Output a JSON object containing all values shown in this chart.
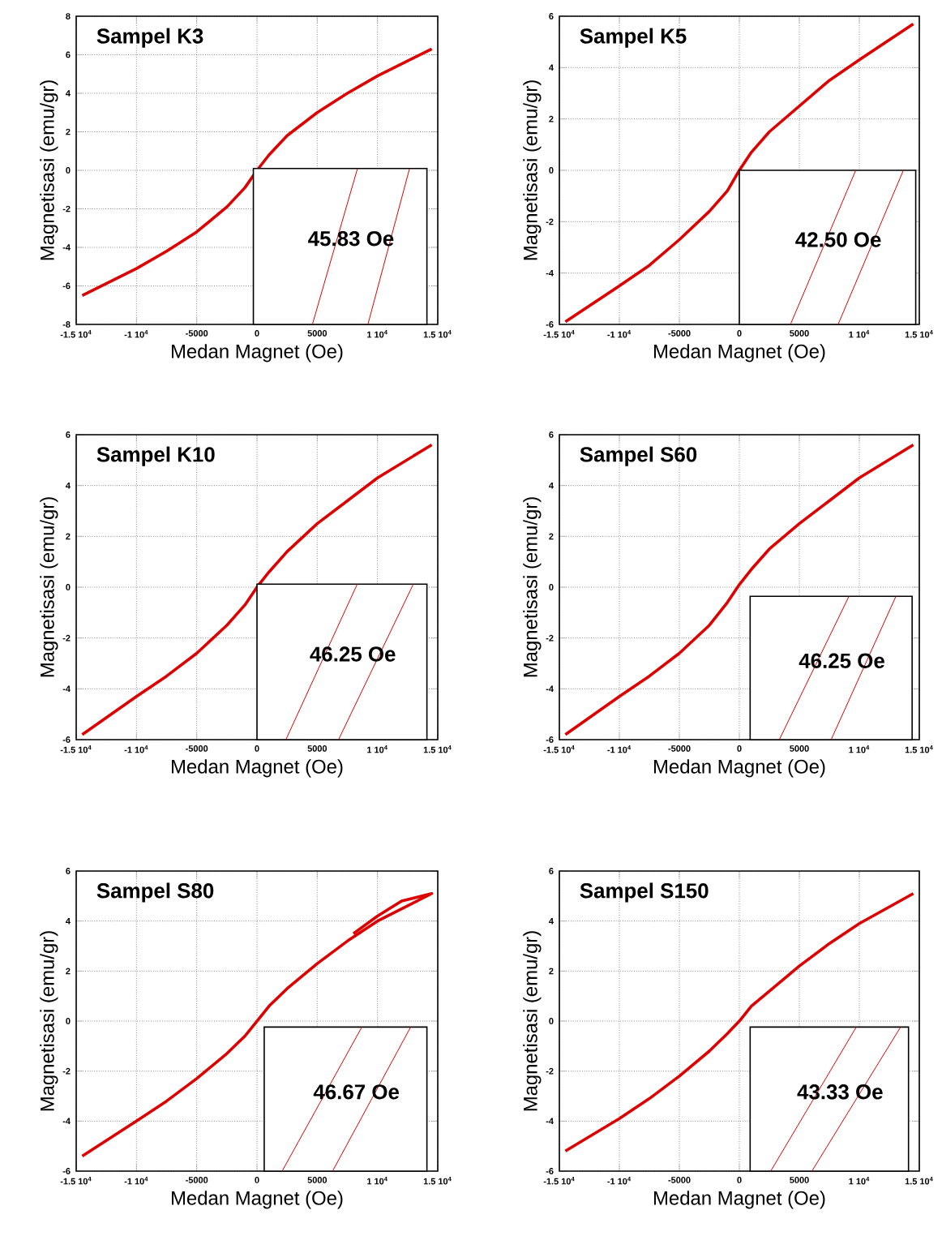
{
  "chart_data": [
    {
      "type": "line",
      "title": "Sampel K3",
      "xlabel": "Medan Magnet (Oe)",
      "ylabel": "Magnetisasi (emu/gr)",
      "annotations": [
        "45.83 Oe"
      ],
      "xlim": [
        -15000,
        15000
      ],
      "ylim": [
        -8,
        8
      ],
      "xticks": [
        {
          "value": -15000,
          "label": "-1.5 10$^{4}$"
        },
        {
          "value": -10000,
          "label": "-1 10$^{4}$"
        },
        -5000,
        0,
        5000,
        {
          "value": 10000,
          "label": "1 10$^{4}$"
        },
        {
          "value": 15000,
          "label": "1.5 10$^{4}$"
        }
      ],
      "yticks": [
        -8,
        -6,
        -4,
        -2,
        0,
        2,
        4,
        6,
        8
      ],
      "grid": true,
      "series": [
        {
          "color": "#dd0000",
          "x": [
            -14500,
            -10000,
            -7500,
            -5000,
            -2500,
            -1000,
            0,
            1000,
            2500,
            5000,
            7500,
            10000,
            14500
          ],
          "values": [
            -6.5,
            -5.1,
            -4.2,
            -3.2,
            -1.9,
            -0.9,
            0,
            0.8,
            1.8,
            3.0,
            4.0,
            4.9,
            6.3
          ]
        }
      ]
    },
    {
      "type": "line",
      "title": "Sampel K5",
      "xlabel": "Medan Magnet (Oe)",
      "ylabel": "Magnetisasi (emu/gr)",
      "annotations": [
        "42.50 Oe"
      ],
      "xlim": [
        -15000,
        15000
      ],
      "ylim": [
        -6,
        6
      ],
      "xticks": [
        {
          "value": -15000,
          "label": "-1.5 10$^{4}$"
        },
        {
          "value": -10000,
          "label": "-1 10$^{4}$"
        },
        -5000,
        0,
        5000,
        {
          "value": 10000,
          "label": "1 10$^{4}$"
        },
        {
          "value": 15000,
          "label": "1.5 10$^{4}$"
        }
      ],
      "yticks": [
        -6,
        -4,
        -2,
        0,
        2,
        4,
        6
      ],
      "grid": true,
      "series": [
        {
          "color": "#dd0000",
          "x": [
            -14500,
            -10000,
            -7500,
            -5000,
            -2500,
            -1000,
            0,
            1000,
            2500,
            5000,
            7500,
            10000,
            14500
          ],
          "values": [
            -5.9,
            -4.5,
            -3.7,
            -2.7,
            -1.6,
            -0.8,
            0,
            0.7,
            1.5,
            2.5,
            3.5,
            4.3,
            5.7
          ]
        }
      ]
    },
    {
      "type": "line",
      "title": "Sampel K10",
      "xlabel": "Medan Magnet (Oe)",
      "ylabel": "Magnetisasi (emu/gr)",
      "annotations": [
        "46.25 Oe"
      ],
      "xlim": [
        -15000,
        15000
      ],
      "ylim": [
        -6,
        6
      ],
      "xticks": [
        {
          "value": -15000,
          "label": "-1.5 10$^{4}$"
        },
        {
          "value": -10000,
          "label": "-1 10$^{4}$"
        },
        -5000,
        0,
        5000,
        {
          "value": 10000,
          "label": "1 10$^{4}$"
        },
        {
          "value": 15000,
          "label": "1.5 10$^{4}$"
        }
      ],
      "yticks": [
        -6,
        -4,
        -2,
        0,
        2,
        4,
        6
      ],
      "grid": true,
      "series": [
        {
          "color": "#dd0000",
          "x": [
            -14500,
            -10000,
            -7500,
            -5000,
            -2500,
            -1000,
            0,
            1000,
            2500,
            5000,
            7500,
            10000,
            14500
          ],
          "values": [
            -5.8,
            -4.3,
            -3.5,
            -2.6,
            -1.5,
            -0.7,
            0,
            0.6,
            1.4,
            2.5,
            3.4,
            4.3,
            5.6
          ]
        }
      ]
    },
    {
      "type": "line",
      "title": "Sampel S60",
      "xlabel": "Medan Magnet (Oe)",
      "ylabel": "Magnetisasi (emu/gr)",
      "annotations": [
        "46.25 Oe"
      ],
      "xlim": [
        -15000,
        15000
      ],
      "ylim": [
        -6,
        6
      ],
      "xticks": [
        {
          "value": -15000,
          "label": "-1.5 10$^{4}$"
        },
        {
          "value": -10000,
          "label": "-1 10$^{4}$"
        },
        -5000,
        0,
        5000,
        {
          "value": 10000,
          "label": "1 10$^{4}$"
        },
        {
          "value": 15000,
          "label": "1.5 10$^{4}$"
        }
      ],
      "yticks": [
        -6,
        -4,
        -2,
        0,
        2,
        4,
        6
      ],
      "grid": true,
      "series": [
        {
          "color": "#dd0000",
          "x": [
            -14500,
            -10000,
            -7500,
            -5000,
            -2500,
            -1000,
            0,
            1000,
            2500,
            5000,
            7500,
            10000,
            14500
          ],
          "values": [
            -5.8,
            -4.3,
            -3.5,
            -2.6,
            -1.5,
            -0.6,
            0.1,
            0.7,
            1.5,
            2.5,
            3.4,
            4.3,
            5.6
          ]
        }
      ]
    },
    {
      "type": "line",
      "title": "Sampel S80",
      "xlabel": "Medan Magnet (Oe)",
      "ylabel": "Magnetisasi (emu/gr)",
      "annotations": [
        "46.67 Oe"
      ],
      "xlim": [
        -15000,
        15000
      ],
      "ylim": [
        -6,
        6
      ],
      "xticks": [
        {
          "value": -15000,
          "label": "-1.5 10$^{4}$"
        },
        {
          "value": -10000,
          "label": "-1 10$^{4}$"
        },
        -5000,
        0,
        5000,
        {
          "value": 10000,
          "label": "1 10$^{4}$"
        },
        {
          "value": 15000,
          "label": "1.5 10$^{4}$"
        }
      ],
      "yticks": [
        -6,
        -4,
        -2,
        0,
        2,
        4,
        6
      ],
      "grid": true,
      "series": [
        {
          "color": "#dd0000",
          "x": [
            -14500,
            -10000,
            -7500,
            -5000,
            -2500,
            -1000,
            0,
            1000,
            2500,
            5000,
            7500,
            10000,
            14500,
            12000,
            10000,
            8000
          ],
          "values": [
            -5.4,
            -4.0,
            -3.2,
            -2.3,
            -1.3,
            -0.6,
            0,
            0.6,
            1.3,
            2.3,
            3.2,
            4.0,
            5.1,
            4.8,
            4.2,
            3.5
          ]
        }
      ]
    },
    {
      "type": "line",
      "title": "Sampel S150",
      "xlabel": "Medan Magnet (Oe)",
      "ylabel": "Magnetisasi (emu/gr)",
      "annotations": [
        "43.33 Oe"
      ],
      "xlim": [
        -15000,
        15000
      ],
      "ylim": [
        -6,
        6
      ],
      "xticks": [
        {
          "value": -15000,
          "label": "-1.5 10$^{4}$"
        },
        {
          "value": -10000,
          "label": "-1 10$^{4}$"
        },
        -5000,
        0,
        5000,
        {
          "value": 10000,
          "label": "1 10$^{4}$"
        },
        {
          "value": 15000,
          "label": "1.5 10$^{4}$"
        }
      ],
      "yticks": [
        -6,
        -4,
        -2,
        0,
        2,
        4,
        6
      ],
      "grid": true,
      "series": [
        {
          "color": "#dd0000",
          "x": [
            -14500,
            -10000,
            -7500,
            -5000,
            -2500,
            -1000,
            0,
            1000,
            2500,
            5000,
            7500,
            10000,
            14500
          ],
          "values": [
            -5.2,
            -3.9,
            -3.1,
            -2.2,
            -1.2,
            -0.5,
            0,
            0.6,
            1.2,
            2.2,
            3.1,
            3.9,
            5.1
          ]
        }
      ]
    }
  ]
}
